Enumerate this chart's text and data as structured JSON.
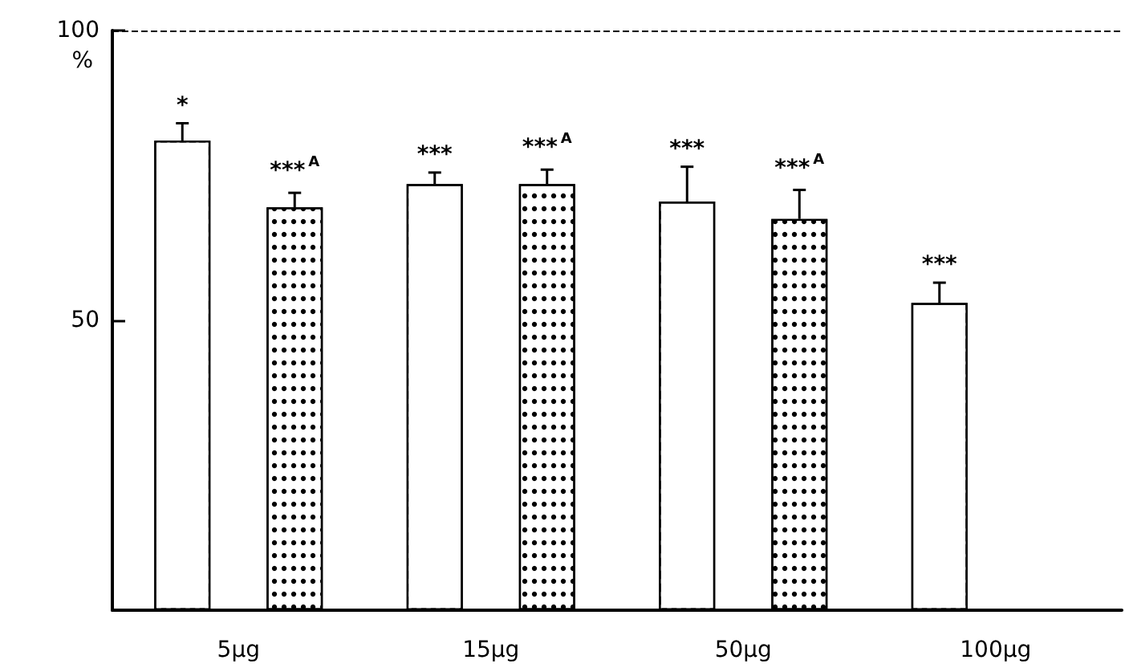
{
  "chart_data": {
    "type": "bar",
    "ylabel": "%",
    "categories": [
      "5µg",
      "15µg",
      "50µg",
      "100µg"
    ],
    "series": [
      {
        "color": "#ffffff",
        "values": [
          81,
          73.5,
          70.5,
          53
        ],
        "errors": [
          3,
          2,
          6,
          3.5
        ],
        "value_labels": [
          "*",
          "***",
          "***",
          "***"
        ]
      },
      {
        "color": "#000000",
        "values": [
          69.5,
          73.5,
          67.5,
          null
        ],
        "errors": [
          2.5,
          2.5,
          5,
          null
        ],
        "value_labels": [
          "***$^{A}$",
          "***$^{A}$",
          "***$^{A}$",
          null
        ]
      }
    ],
    "ylim": [
      0,
      100
    ],
    "yticks": [
      50,
      100
    ],
    "grid": false,
    "ref_lines": [
      {
        "axis": "y",
        "value": 100,
        "line_style": "dashed",
        "color": "#000000"
      }
    ]
  }
}
